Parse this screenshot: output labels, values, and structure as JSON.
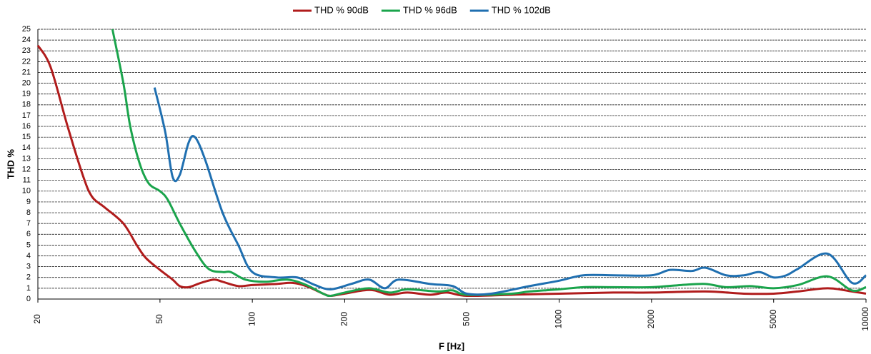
{
  "chart_data": {
    "type": "line",
    "xlabel": "F [Hz]",
    "ylabel": "THD %",
    "xscale": "log",
    "grid": true,
    "legend": "top",
    "xlim": [
      20,
      10000
    ],
    "xticks": [
      20,
      50,
      100,
      200,
      500,
      1000,
      2000,
      5000,
      10000
    ],
    "ylim": [
      0,
      25
    ],
    "yticks": [
      0,
      1,
      2,
      3,
      4,
      5,
      6,
      7,
      8,
      9,
      10,
      11,
      12,
      13,
      14,
      15,
      16,
      17,
      18,
      19,
      20,
      21,
      22,
      23,
      24,
      25
    ],
    "series": [
      {
        "name": "THD % 90dB",
        "color": "#b01c1c",
        "x": [
          20,
          22,
          25,
          28,
          30,
          33,
          38,
          42,
          45,
          50,
          55,
          58,
          62,
          68,
          75,
          80,
          90,
          100,
          120,
          135,
          150,
          170,
          180,
          200,
          230,
          250,
          280,
          320,
          380,
          430,
          500,
          700,
          1000,
          1500,
          2000,
          3000,
          4000,
          5000,
          6000,
          7500,
          9000,
          10000
        ],
        "values": [
          23.5,
          21.5,
          16,
          11.5,
          9.5,
          8.5,
          7,
          5,
          3.8,
          2.7,
          1.8,
          1.2,
          1.1,
          1.5,
          1.8,
          1.6,
          1.2,
          1.3,
          1.4,
          1.5,
          1.2,
          0.5,
          0.3,
          0.5,
          0.8,
          0.8,
          0.4,
          0.6,
          0.4,
          0.6,
          0.3,
          0.4,
          0.5,
          0.6,
          0.6,
          0.7,
          0.5,
          0.5,
          0.7,
          1.0,
          0.7,
          0.5
        ]
      },
      {
        "name": "THD % 96dB",
        "color": "#1aa44c",
        "x": [
          35,
          38,
          40,
          43,
          46,
          50,
          53,
          58,
          65,
          72,
          80,
          85,
          95,
          110,
          130,
          150,
          170,
          180,
          200,
          240,
          280,
          320,
          400,
          450,
          500,
          700,
          800,
          1000,
          1200,
          1500,
          2000,
          2500,
          3000,
          3500,
          4200,
          5000,
          6000,
          7500,
          9000,
          10000
        ],
        "values": [
          25,
          20,
          16,
          12.5,
          10.7,
          10,
          9.2,
          7,
          4.5,
          2.8,
          2.5,
          2.5,
          1.8,
          1.6,
          1.8,
          1.3,
          0.5,
          0.3,
          0.6,
          1.0,
          0.6,
          0.9,
          0.7,
          0.8,
          0.4,
          0.5,
          0.7,
          0.9,
          1.1,
          1.1,
          1.1,
          1.3,
          1.4,
          1.1,
          1.2,
          1.0,
          1.3,
          2.1,
          0.8,
          1.1
        ]
      },
      {
        "name": "THD % 102dB",
        "color": "#1f6fb0",
        "x": [
          48,
          52,
          55,
          58,
          62,
          65,
          70,
          80,
          90,
          100,
          120,
          140,
          160,
          180,
          210,
          240,
          270,
          300,
          380,
          450,
          500,
          600,
          800,
          1000,
          1200,
          1500,
          2000,
          2300,
          2700,
          3000,
          3500,
          4000,
          4500,
          5000,
          5500,
          6000,
          7500,
          9000,
          10000
        ],
        "values": [
          19.6,
          15.5,
          11.3,
          11.5,
          14.5,
          15,
          13,
          8,
          5,
          2.5,
          2.0,
          2.0,
          1.3,
          0.9,
          1.4,
          1.8,
          1.0,
          1.8,
          1.4,
          1.2,
          0.5,
          0.5,
          1.2,
          1.7,
          2.2,
          2.2,
          2.2,
          2.7,
          2.6,
          2.9,
          2.2,
          2.2,
          2.5,
          2.0,
          2.2,
          2.8,
          4.2,
          1.5,
          2.2
        ]
      }
    ]
  }
}
